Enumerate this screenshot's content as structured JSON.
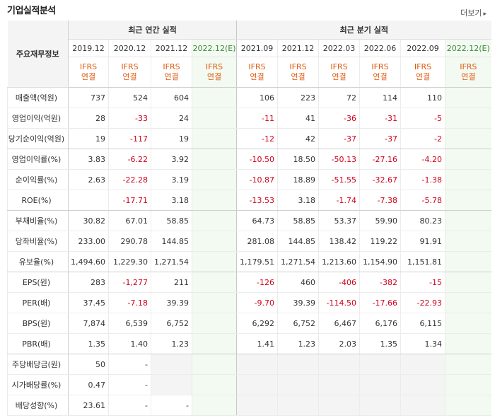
{
  "header": {
    "title": "기업실적분석",
    "more": "더보기"
  },
  "table": {
    "corner_label": "주요재무정보",
    "group_annual": "최근 연간 실적",
    "group_quarter": "최근 분기 실적",
    "periods": [
      "2019.12",
      "2020.12",
      "2021.12",
      "2022.12(E)",
      "2021.09",
      "2021.12",
      "2022.03",
      "2022.06",
      "2022.09",
      "2022.12(E)"
    ],
    "std_line1": "IFRS",
    "std_line2": "연결",
    "rows": [
      {
        "label": "매출액(억원)",
        "values": [
          "737",
          "524",
          "604",
          "",
          "106",
          "223",
          "72",
          "114",
          "110",
          ""
        ]
      },
      {
        "label": "영업이익(억원)",
        "values": [
          "28",
          "-33",
          "24",
          "",
          "-11",
          "41",
          "-36",
          "-31",
          "-5",
          ""
        ]
      },
      {
        "label": "당기순이익(억원)",
        "values": [
          "19",
          "-117",
          "19",
          "",
          "-12",
          "42",
          "-37",
          "-37",
          "-2",
          ""
        ]
      },
      {
        "label": "영업이익률(%)",
        "values": [
          "3.83",
          "-6.22",
          "3.92",
          "",
          "-10.50",
          "18.50",
          "-50.13",
          "-27.16",
          "-4.20",
          ""
        ]
      },
      {
        "label": "순이익률(%)",
        "values": [
          "2.63",
          "-22.28",
          "3.19",
          "",
          "-10.87",
          "18.89",
          "-51.55",
          "-32.67",
          "-1.38",
          ""
        ]
      },
      {
        "label": "ROE(%)",
        "values": [
          "",
          "-17.71",
          "3.18",
          "",
          "-13.53",
          "3.18",
          "-1.74",
          "-7.38",
          "-5.78",
          ""
        ]
      },
      {
        "label": "부채비율(%)",
        "values": [
          "30.82",
          "67.01",
          "58.85",
          "",
          "64.73",
          "58.85",
          "53.37",
          "59.90",
          "80.23",
          ""
        ]
      },
      {
        "label": "당좌비율(%)",
        "values": [
          "233.00",
          "290.78",
          "144.85",
          "",
          "281.08",
          "144.85",
          "138.42",
          "119.22",
          "91.91",
          ""
        ]
      },
      {
        "label": "유보율(%)",
        "values": [
          "1,494.60",
          "1,229.30",
          "1,271.54",
          "",
          "1,179.51",
          "1,271.54",
          "1,213.60",
          "1,154.90",
          "1,151.81",
          ""
        ]
      },
      {
        "label": "EPS(원)",
        "values": [
          "283",
          "-1,277",
          "211",
          "",
          "-126",
          "460",
          "-406",
          "-382",
          "-15",
          ""
        ]
      },
      {
        "label": "PER(배)",
        "values": [
          "37.45",
          "-7.18",
          "39.39",
          "",
          "-9.70",
          "39.39",
          "-114.50",
          "-17.66",
          "-22.93",
          ""
        ]
      },
      {
        "label": "BPS(원)",
        "values": [
          "7,874",
          "6,539",
          "6,752",
          "",
          "6,292",
          "6,752",
          "6,467",
          "6,176",
          "6,115",
          ""
        ]
      },
      {
        "label": "PBR(배)",
        "values": [
          "1.35",
          "1.40",
          "1.23",
          "",
          "1.41",
          "1.23",
          "2.03",
          "1.35",
          "1.34",
          ""
        ]
      },
      {
        "label": "주당배당금(원)",
        "values": [
          "50",
          "-",
          "",
          "",
          "",
          "",
          "",
          "",
          "",
          ""
        ]
      },
      {
        "label": "시가배당률(%)",
        "values": [
          "0.47",
          "-",
          "",
          "",
          "",
          "",
          "",
          "",
          "",
          ""
        ]
      },
      {
        "label": "배당성향(%)",
        "values": [
          "23.61",
          "-",
          "-",
          "",
          "",
          "",
          "",
          "",
          "",
          ""
        ]
      }
    ]
  },
  "colors": {
    "negative": "#d0021b",
    "standard": "#e05a10",
    "estimate": "#3a8a3a",
    "estimate_bg": "#f3faf1"
  }
}
